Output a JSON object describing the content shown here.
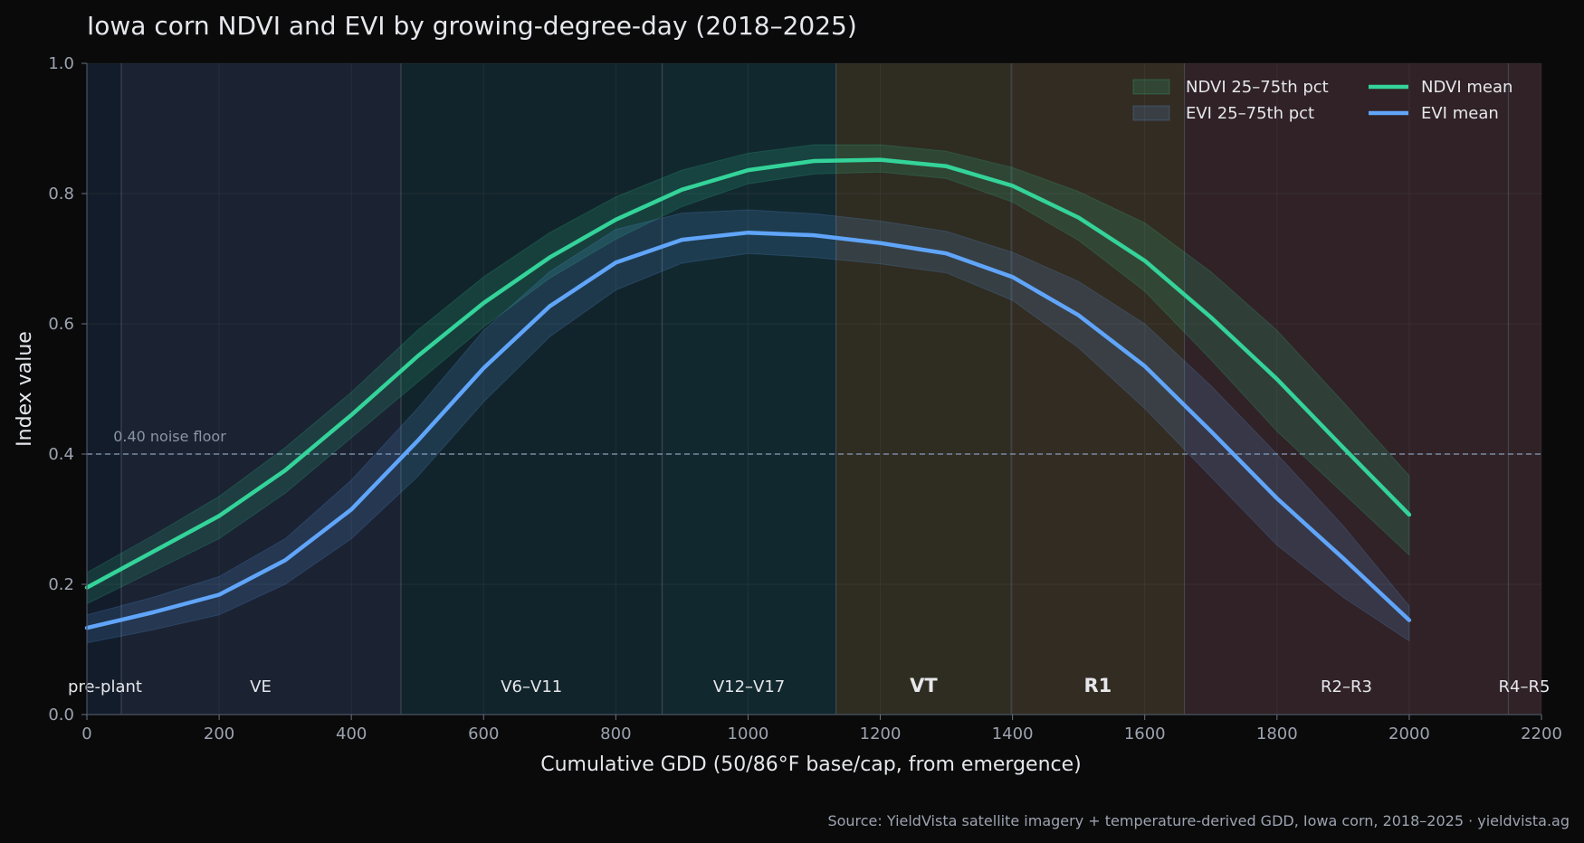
{
  "colors": {
    "background": "#0a0a0b",
    "plot_bg": "#171c26",
    "ndvi": "#34d399",
    "evi": "#60a5fa",
    "text": "#e5e7eb",
    "muted": "#9ca3af"
  },
  "footer": {
    "source": "Source: YieldVista satellite imagery + temperature-derived GDD, Iowa corn, 2018–2025  ·  yieldvista.ag"
  },
  "chart_data": {
    "type": "line",
    "title": "Iowa corn NDVI and EVI by growing-degree-day (2018–2025)",
    "xlabel": "Cumulative GDD (50/86°F base/cap, from emergence)",
    "ylabel": "Index value",
    "xlim": [
      0,
      2200
    ],
    "ylim": [
      0,
      1.0
    ],
    "xticks": [
      0,
      200,
      400,
      600,
      800,
      1000,
      1200,
      1400,
      1600,
      1800,
      2000,
      2200
    ],
    "yticks": [
      0.0,
      0.2,
      0.4,
      0.6,
      0.8,
      1.0
    ],
    "grid": true,
    "legend_position": "top-right",
    "x": [
      0,
      100,
      200,
      300,
      400,
      500,
      600,
      700,
      800,
      900,
      1000,
      1100,
      1200,
      1300,
      1400,
      1500,
      1600,
      1700,
      1800,
      1900,
      2000
    ],
    "series": [
      {
        "name": "NDVI mean",
        "kind": "line",
        "color": "#34d399",
        "values": [
          0.195,
          0.25,
          0.305,
          0.375,
          0.46,
          0.55,
          0.632,
          0.702,
          0.76,
          0.806,
          0.836,
          0.85,
          0.852,
          0.842,
          0.812,
          0.763,
          0.697,
          0.61,
          0.515,
          0.41,
          0.307
        ]
      },
      {
        "name": "EVI mean",
        "kind": "line",
        "color": "#60a5fa",
        "values": [
          0.133,
          0.157,
          0.184,
          0.237,
          0.315,
          0.42,
          0.532,
          0.627,
          0.694,
          0.729,
          0.74,
          0.736,
          0.724,
          0.708,
          0.672,
          0.613,
          0.535,
          0.435,
          0.332,
          0.24,
          0.145
        ]
      },
      {
        "name": "NDVI 25–75th pct",
        "kind": "band",
        "color": "#34d399",
        "lower": [
          0.17,
          0.22,
          0.27,
          0.34,
          0.425,
          0.51,
          0.595,
          0.67,
          0.73,
          0.78,
          0.815,
          0.83,
          0.833,
          0.823,
          0.787,
          0.728,
          0.65,
          0.545,
          0.435,
          0.34,
          0.245
        ],
        "upper": [
          0.218,
          0.275,
          0.335,
          0.41,
          0.495,
          0.59,
          0.672,
          0.74,
          0.795,
          0.836,
          0.862,
          0.875,
          0.875,
          0.865,
          0.84,
          0.803,
          0.755,
          0.68,
          0.59,
          0.48,
          0.367
        ]
      },
      {
        "name": "EVI 25–75th pct",
        "kind": "band",
        "color": "#60a5fa",
        "lower": [
          0.11,
          0.13,
          0.153,
          0.2,
          0.27,
          0.365,
          0.48,
          0.58,
          0.652,
          0.693,
          0.708,
          0.702,
          0.692,
          0.678,
          0.636,
          0.563,
          0.47,
          0.365,
          0.26,
          0.18,
          0.113
        ],
        "upper": [
          0.153,
          0.18,
          0.212,
          0.27,
          0.36,
          0.47,
          0.59,
          0.68,
          0.745,
          0.77,
          0.775,
          0.769,
          0.758,
          0.742,
          0.71,
          0.665,
          0.6,
          0.505,
          0.4,
          0.29,
          0.167
        ]
      }
    ],
    "legend": [
      "NDVI 25–75th pct",
      "EVI 25–75th pct",
      "NDVI mean",
      "EVI mean"
    ],
    "reference_line": {
      "y": 0.4,
      "label": "0.40 noise floor"
    },
    "stages": [
      {
        "label": "pre-plant",
        "x0": 0,
        "x1": 52,
        "color": "#131c2a",
        "bold": false
      },
      {
        "label": "VE",
        "x0": 52,
        "x1": 475,
        "color": "#1b2232",
        "bold": false
      },
      {
        "label": "V6–V11",
        "x0": 475,
        "x1": 870,
        "color": "#12242b",
        "bold": false
      },
      {
        "label": "V12–V17",
        "x0": 870,
        "x1": 1133,
        "color": "#12282f",
        "bold": false
      },
      {
        "label": "VT",
        "x0": 1133,
        "x1": 1398,
        "color": "#2f2c22",
        "bold": true
      },
      {
        "label": "R1",
        "x0": 1398,
        "x1": 1660,
        "color": "#332c22",
        "bold": true
      },
      {
        "label": "R2–R3",
        "x0": 1660,
        "x1": 2150,
        "color": "#302226",
        "bold": false
      },
      {
        "label": "R4–R5",
        "x0": 2150,
        "x1": 2200,
        "color": "#302226",
        "bold": false
      }
    ]
  }
}
